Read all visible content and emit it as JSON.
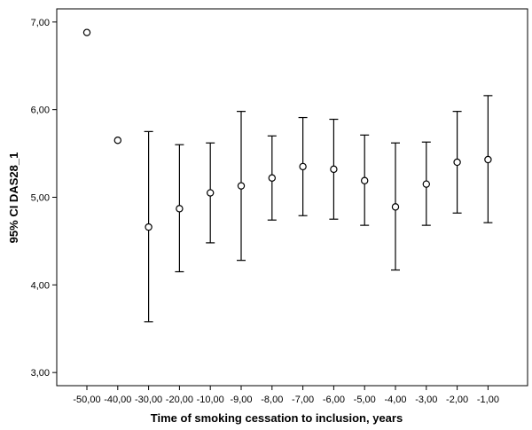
{
  "chart_data": {
    "type": "scatter",
    "title": "",
    "xlabel": "Time of smoking cessation to inclusion, years",
    "ylabel": "95% CI DAS28_1",
    "ylim": [
      2.85,
      7.15
    ],
    "yticks": [
      "3,00",
      "4,00",
      "5,00",
      "6,00",
      "7,00"
    ],
    "ytick_values": [
      3,
      4,
      5,
      6,
      7
    ],
    "grid": false,
    "categories": [
      "-50,00",
      "-40,00",
      "-30,00",
      "-20,00",
      "-10,00",
      "-9,00",
      "-8,00",
      "-7,00",
      "-6,00",
      "-5,00",
      "-4,00",
      "-3,00",
      "-2,00",
      "-1,00"
    ],
    "mean": [
      6.88,
      5.65,
      4.66,
      4.87,
      5.05,
      5.13,
      5.22,
      5.35,
      5.32,
      5.19,
      4.89,
      5.15,
      5.4,
      5.43
    ],
    "ci_low": [
      null,
      null,
      3.58,
      4.15,
      4.48,
      4.28,
      4.74,
      4.79,
      4.75,
      4.68,
      4.17,
      4.68,
      4.82,
      4.71
    ],
    "ci_high": [
      null,
      null,
      5.75,
      5.6,
      5.62,
      5.98,
      5.7,
      5.91,
      5.89,
      5.71,
      5.62,
      5.63,
      5.98,
      6.16
    ]
  }
}
